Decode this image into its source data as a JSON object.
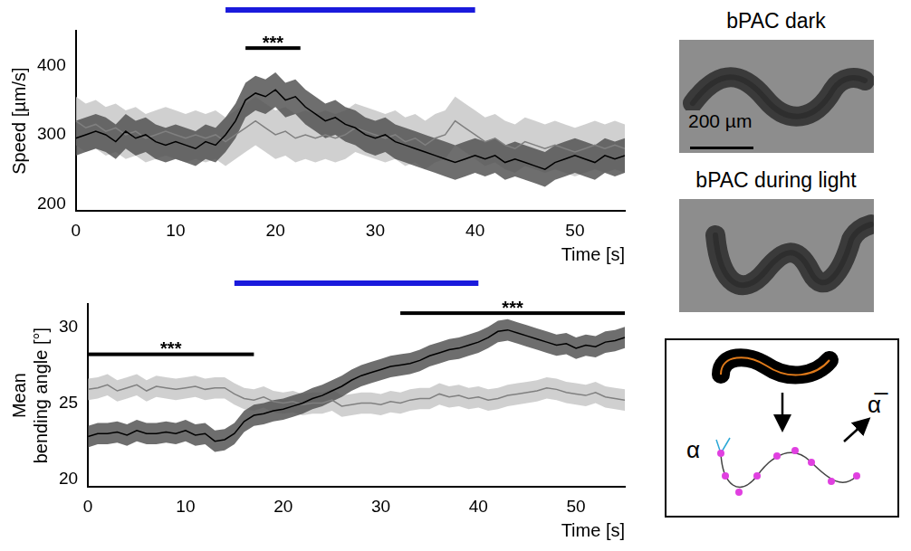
{
  "chart_data": [
    {
      "type": "line",
      "x_label": "Time [s]",
      "y_label": "Speed [µm/s]",
      "x": [
        0,
        1,
        2,
        3,
        4,
        5,
        6,
        7,
        8,
        9,
        10,
        11,
        12,
        13,
        14,
        15,
        16,
        17,
        18,
        19,
        20,
        21,
        22,
        23,
        24,
        25,
        26,
        27,
        28,
        29,
        30,
        31,
        32,
        33,
        34,
        35,
        36,
        37,
        38,
        39,
        40,
        41,
        42,
        43,
        44,
        45,
        46,
        47,
        48,
        49,
        50,
        51,
        52,
        53,
        54,
        55
      ],
      "xlim": [
        0,
        55
      ],
      "xticks": [
        0,
        10,
        20,
        30,
        40,
        50
      ],
      "ylim": [
        190,
        450
      ],
      "yticks": [
        200,
        300,
        400
      ],
      "grid": false,
      "series": [
        {
          "color": "#000000",
          "error": 25,
          "values": [
            295,
            300,
            305,
            300,
            290,
            305,
            295,
            300,
            290,
            285,
            290,
            285,
            280,
            290,
            285,
            300,
            320,
            350,
            360,
            355,
            365,
            350,
            355,
            340,
            330,
            320,
            325,
            315,
            310,
            300,
            295,
            300,
            290,
            285,
            280,
            275,
            270,
            265,
            260,
            265,
            270,
            265,
            270,
            260,
            265,
            260,
            255,
            250,
            260,
            265,
            270,
            265,
            260,
            270,
            265,
            270
          ]
        },
        {
          "color": "#808080",
          "error": 35,
          "values": [
            320,
            310,
            315,
            305,
            310,
            300,
            305,
            295,
            300,
            305,
            300,
            295,
            300,
            295,
            300,
            290,
            300,
            310,
            320,
            310,
            300,
            305,
            295,
            300,
            295,
            300,
            295,
            300,
            310,
            305,
            300,
            295,
            300,
            290,
            295,
            285,
            295,
            300,
            320,
            310,
            300,
            290,
            295,
            285,
            280,
            290,
            285,
            280,
            285,
            280,
            275,
            280,
            285,
            280,
            285,
            280
          ]
        }
      ],
      "light": {
        "x": [
          15,
          40
        ],
        "color": "#1a1adc"
      },
      "annotations": [
        {
          "text": "***",
          "x": [
            17,
            22.5
          ],
          "y": 425
        }
      ]
    },
    {
      "type": "line",
      "x_label": "Time [s]",
      "y_label": "Mean bending angle [°]",
      "x": [
        0,
        1,
        2,
        3,
        4,
        5,
        6,
        7,
        8,
        9,
        10,
        11,
        12,
        13,
        14,
        15,
        16,
        17,
        18,
        19,
        20,
        21,
        22,
        23,
        24,
        25,
        26,
        27,
        28,
        29,
        30,
        31,
        32,
        33,
        34,
        35,
        36,
        37,
        38,
        39,
        40,
        41,
        42,
        43,
        44,
        45,
        46,
        47,
        48,
        49,
        50,
        51,
        52,
        53,
        54,
        55
      ],
      "xlim": [
        0,
        55
      ],
      "xticks": [
        0,
        10,
        20,
        30,
        40,
        50
      ],
      "ylim": [
        19.5,
        31.5
      ],
      "yticks": [
        20,
        25,
        30
      ],
      "grid": false,
      "series": [
        {
          "color": "#000000",
          "error": 0.7,
          "values": [
            22.8,
            23,
            23,
            23.1,
            22.9,
            23.2,
            23,
            23,
            23.1,
            23,
            23.2,
            22.9,
            23,
            22.5,
            22.6,
            23,
            23.8,
            24.2,
            24.3,
            24.5,
            24.6,
            24.8,
            25,
            25.3,
            25.5,
            25.8,
            26.1,
            26.5,
            26.8,
            27,
            27.2,
            27.4,
            27.5,
            27.6,
            27.8,
            28.1,
            28.3,
            28.5,
            28.6,
            28.8,
            29,
            29.3,
            29.7,
            29.8,
            29.6,
            29.4,
            29.2,
            29,
            28.8,
            28.9,
            28.6,
            28.8,
            28.7,
            29,
            29.1,
            29.3
          ]
        },
        {
          "color": "#808080",
          "error": 0.7,
          "values": [
            25.9,
            26,
            26.2,
            25.8,
            26,
            26.2,
            25.8,
            26.1,
            26,
            25.9,
            26,
            26.1,
            25.9,
            26,
            26,
            25.6,
            25.3,
            25.2,
            25.4,
            25.1,
            25,
            25.1,
            24.9,
            25,
            25,
            25.2,
            24.8,
            24.9,
            25,
            25,
            24.9,
            25.1,
            25,
            25.2,
            25.3,
            25.3,
            25.6,
            25.4,
            25.5,
            25.3,
            25.4,
            25.2,
            25.3,
            25.5,
            25.6,
            25.7,
            25.8,
            26,
            25.9,
            25.7,
            25.6,
            25.5,
            25.7,
            25.4,
            25.3,
            25.2
          ]
        }
      ],
      "light": {
        "x": [
          15,
          40
        ],
        "color": "#1a1adc"
      },
      "annotations": [
        {
          "text": "***",
          "x": [
            0,
            17
          ],
          "y": 28.2
        },
        {
          "text": "***",
          "x": [
            32,
            55
          ],
          "y": 30.9
        }
      ]
    }
  ],
  "panels": {
    "dark_title": "bPAC dark",
    "scale_bar": "200 µm",
    "light_title": "bPAC during light",
    "schematic": {
      "angle": "α",
      "mean_angle": "α̅"
    }
  }
}
